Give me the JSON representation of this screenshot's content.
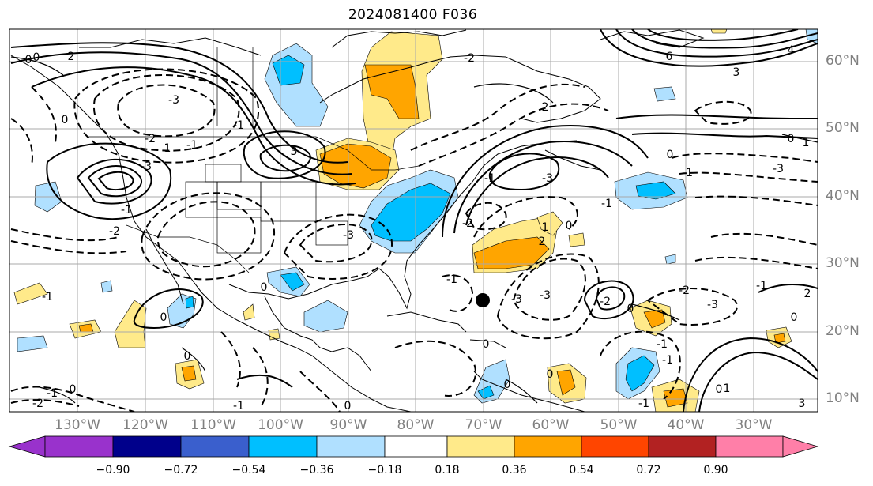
{
  "title": "2024081400 F036",
  "lat_labels": [
    "60°N",
    "50°N",
    "40°N",
    "30°N",
    "20°N",
    "10°N"
  ],
  "lon_labels": [
    "130°W",
    "120°W",
    "110°W",
    "100°W",
    "90°W",
    "80°W",
    "70°W",
    "60°W",
    "50°W",
    "40°W",
    "30°W"
  ],
  "colorbar": {
    "ticks": [
      "−0.90",
      "−0.72",
      "−0.54",
      "−0.36",
      "−0.18",
      "0.18",
      "0.36",
      "0.54",
      "0.72",
      "0.90"
    ],
    "colors": [
      "#9932cc",
      "#00008b",
      "#3a5fcd",
      "#00bfff",
      "#b0e0ff",
      "#ffffff",
      "#ffea8a",
      "#ffa500",
      "#ff4500",
      "#b22222",
      "#ff7fa8"
    ]
  },
  "contour_labels": [
    "0",
    "2",
    "-3",
    "-2",
    "0",
    "6",
    "4",
    "3",
    "-2",
    "2",
    "0",
    "-1",
    "-3",
    "0",
    "-3",
    "-2",
    "-1",
    "-3",
    "-1",
    "-2",
    "1",
    "-3",
    "-1",
    "3",
    "-1",
    "-3",
    "-1",
    "1",
    "0",
    "2",
    "0",
    "-1",
    "-2",
    "0",
    "0",
    "1",
    "2",
    "3",
    "0",
    "0",
    "-1",
    "0",
    "1",
    "-1",
    "0",
    "-1",
    "-1",
    "-2",
    "-1",
    "-3",
    "-3",
    "-2",
    "-1",
    "0",
    "0",
    "0",
    "-1",
    "0",
    "0"
  ],
  "markers": {
    "storm_center": "black-dot"
  },
  "legend": {
    "extend": "both"
  }
}
